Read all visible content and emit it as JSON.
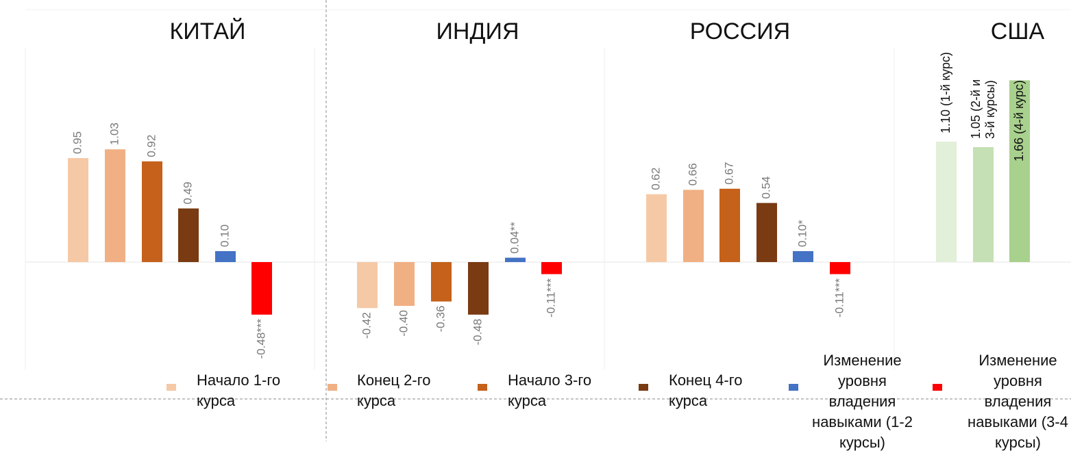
{
  "colors": {
    "start1": "#f6c9a6",
    "end2": "#f0b084",
    "start3": "#c5611a",
    "end4": "#7a3a12",
    "change12": "#4472c4",
    "change34": "#ff0000",
    "usa1": "#e2efd9",
    "usa23": "#c5e0b4",
    "usa4": "#a9d18e"
  },
  "legend": [
    {
      "label": "Начало 1-го курса",
      "color_key": "start1"
    },
    {
      "label": "Конец 2-го курса",
      "color_key": "end2"
    },
    {
      "label": "Начало 3-го курса",
      "color_key": "start3"
    },
    {
      "label": "Конец 4-го курса",
      "color_key": "end4"
    },
    {
      "label": "Изменение уровня владения навыками (1-2 курсы)",
      "color_key": "change12"
    },
    {
      "label": "Изменение уровня владения навыками (3-4 курсы)",
      "color_key": "change34"
    }
  ],
  "chart_data": [
    {
      "type": "bar",
      "title": "КИТАЙ",
      "categories": [
        "Начало 1-го курса",
        "Конец 2-го курса",
        "Начало 3-го курса",
        "Конец 4-го курса",
        "Изменение уровня владения навыками (1-2 курсы)",
        "Изменение уровня владения навыками (3-4 курсы)"
      ],
      "values": [
        0.95,
        1.03,
        0.92,
        0.49,
        0.1,
        -0.48
      ],
      "labels": [
        "0.95",
        "1.03",
        "0.92",
        "0.49",
        "0.10",
        "-0.48***"
      ],
      "colors": [
        "start1",
        "end2",
        "start3",
        "end4",
        "change12",
        "change34"
      ]
    },
    {
      "type": "bar",
      "title": "ИНДИЯ",
      "categories": [
        "Начало 1-го курса",
        "Конец 2-го курса",
        "Начало 3-го курса",
        "Конец 4-го курса",
        "Изменение уровня владения навыками (1-2 курсы)",
        "Изменение уровня владения навыками (3-4 курсы)"
      ],
      "values": [
        -0.42,
        -0.4,
        -0.36,
        -0.48,
        0.04,
        -0.11
      ],
      "labels": [
        "-0.42",
        "-0.40",
        "-0.36",
        "-0.48",
        "0.04**",
        "-0.11***"
      ],
      "colors": [
        "start1",
        "end2",
        "start3",
        "end4",
        "change12",
        "change34"
      ]
    },
    {
      "type": "bar",
      "title": "РОССИЯ",
      "categories": [
        "Начало 1-го курса",
        "Конец 2-го курса",
        "Начало 3-го курса",
        "Конец 4-го курса",
        "Изменение уровня владения навыками (1-2 курсы)",
        "Изменение уровня владения навыками (3-4 курсы)"
      ],
      "values": [
        0.62,
        0.66,
        0.67,
        0.54,
        0.1,
        -0.11
      ],
      "labels": [
        "0.62",
        "0.66",
        "0.67",
        "0.54",
        "0.10*",
        "-0.11***"
      ],
      "colors": [
        "start1",
        "end2",
        "start3",
        "end4",
        "change12",
        "change34"
      ]
    },
    {
      "type": "bar",
      "title": "США",
      "categories": [
        "1-й курс",
        "2-й и 3-й курсы",
        "4-й курс"
      ],
      "values": [
        1.1,
        1.05,
        1.66
      ],
      "labels": [
        "1.10 (1-й курс)",
        "1.05 (2-й и 3-й курсы)",
        "1.66 (4-й курс)"
      ],
      "colors": [
        "usa1",
        "usa23",
        "usa4"
      ]
    }
  ]
}
